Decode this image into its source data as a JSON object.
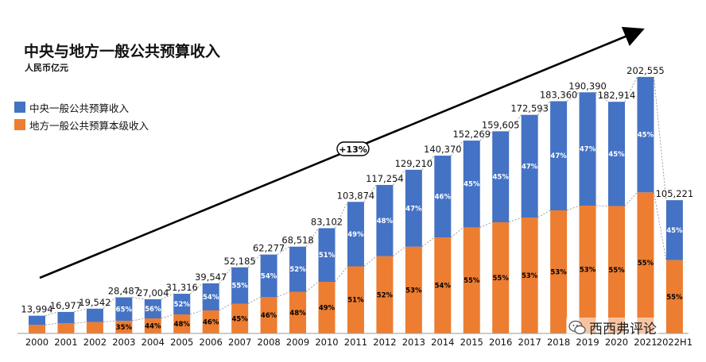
{
  "chart_data": {
    "type": "bar",
    "stacked": true,
    "title": "中央与地方一般公共预算收入",
    "unit": "人民币亿元",
    "categories": [
      "2000",
      "2001",
      "2002",
      "2003",
      "2004",
      "2005",
      "2006",
      "2007",
      "2008",
      "2009",
      "2010",
      "2011",
      "2012",
      "2013",
      "2014",
      "2015",
      "2016",
      "2017",
      "2018",
      "2019",
      "2020",
      "2021",
      "2022H1"
    ],
    "totals": [
      13994,
      16977,
      19542,
      28487,
      27004,
      31316,
      39547,
      52185,
      62277,
      68518,
      83102,
      103874,
      117254,
      129210,
      140370,
      152269,
      159605,
      172593,
      183360,
      190390,
      182914,
      202555,
      105221
    ],
    "total_labels": [
      "13,994",
      "16,977",
      "19,542",
      "28,487",
      "27,004",
      "31,316",
      "39,547",
      "52,185",
      "62,277",
      "68,518",
      "83,102",
      "103,874",
      "117,254",
      "129,210",
      "140,370",
      "152,269",
      "159,605",
      "172,593",
      "183,360",
      "190,390",
      "182,914",
      "202,555",
      "105,221"
    ],
    "series": [
      {
        "name": "地方一般公共预算本级收入",
        "color": "#ED7D31",
        "share_pct": [
          48,
          47,
          46,
          35,
          44,
          48,
          46,
          45,
          46,
          48,
          49,
          51,
          52,
          53,
          54,
          55,
          55,
          53,
          53,
          53,
          55,
          55,
          55
        ],
        "share_labels": [
          "",
          "",
          "",
          "35%",
          "44%",
          "48%",
          "46%",
          "45%",
          "46%",
          "48%",
          "49%",
          "51%",
          "52%",
          "53%",
          "54%",
          "55%",
          "55%",
          "53%",
          "53%",
          "53%",
          "55%",
          "55%",
          "55%"
        ]
      },
      {
        "name": "中央一般公共预算收入",
        "color": "#4472C4",
        "share_pct": [
          52,
          53,
          54,
          65,
          56,
          52,
          54,
          55,
          54,
          52,
          51,
          49,
          48,
          47,
          46,
          45,
          45,
          47,
          47,
          47,
          45,
          45,
          45
        ],
        "share_labels": [
          "",
          "",
          "",
          "65%",
          "56%",
          "52%",
          "54%",
          "55%",
          "54%",
          "52%",
          "51%",
          "49%",
          "48%",
          "47%",
          "46%",
          "45%",
          "45%",
          "47%",
          "47%",
          "47%",
          "45%",
          "45%",
          "45%"
        ]
      }
    ],
    "ylim": [
      0,
      210000
    ],
    "trend_annotation": "+13%",
    "legend": [
      "中央一般公共预算收入",
      "地方一般公共预算本级收入"
    ],
    "legend_position": "top-left"
  },
  "watermark": "西西弗评论"
}
